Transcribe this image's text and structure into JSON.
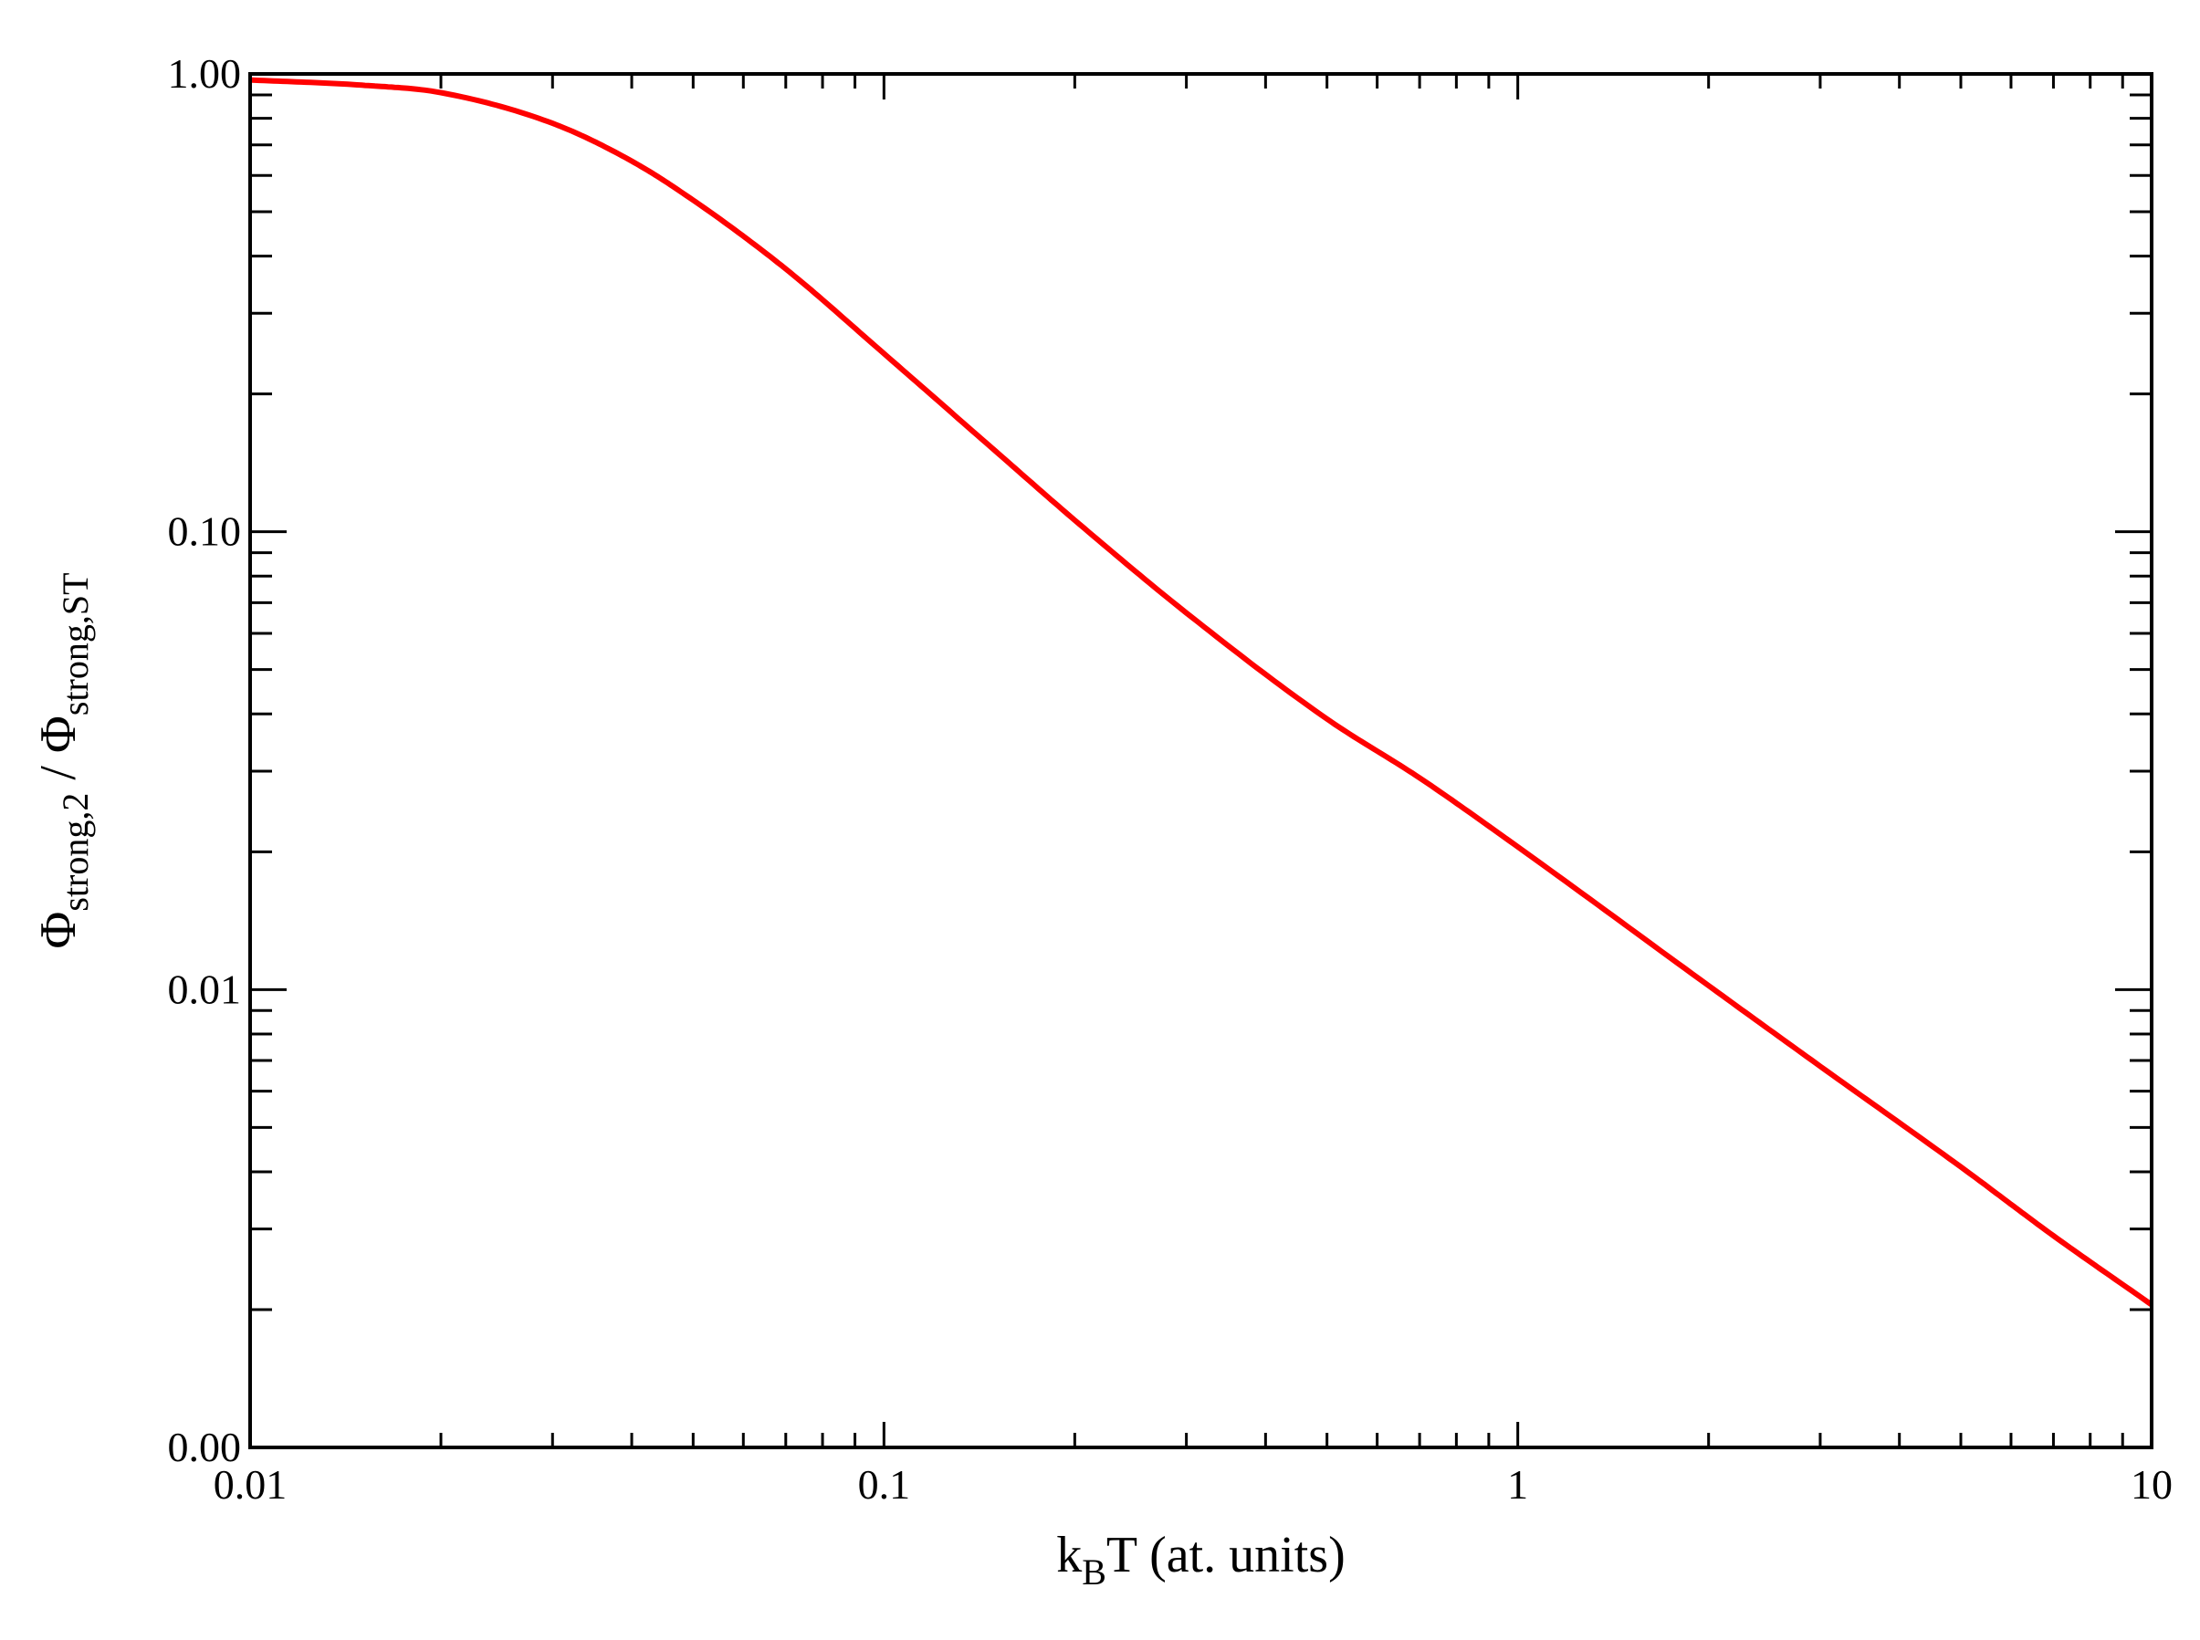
{
  "chart_data": {
    "type": "line",
    "title": "",
    "xlabel": {
      "main_pre": "k",
      "sub": "B",
      "main_post": "T (at. units)"
    },
    "ylabel": {
      "sym1": "Φ",
      "sub1": "strong,2",
      "sep": " / ",
      "sym2": "Φ",
      "sub2": "strong,ST"
    },
    "x_scale": "log",
    "y_scale": "log",
    "xlim": [
      0.01,
      10
    ],
    "ylim": [
      0.001,
      1.0
    ],
    "x_ticks": [
      {
        "value": 0.01,
        "label": "0.01"
      },
      {
        "value": 0.1,
        "label": "0.1"
      },
      {
        "value": 1,
        "label": "1"
      },
      {
        "value": 10,
        "label": "10"
      }
    ],
    "y_ticks": [
      {
        "value": 0.001,
        "label": "0.00"
      },
      {
        "value": 0.01,
        "label": "0.01"
      },
      {
        "value": 0.1,
        "label": "0.10"
      },
      {
        "value": 1.0,
        "label": "1.00"
      }
    ],
    "grid": false,
    "legend": "none",
    "series": [
      {
        "color": "#ff0000",
        "x": [
          0.01,
          0.015,
          0.02,
          0.03,
          0.04,
          0.05,
          0.07,
          0.1,
          0.15,
          0.2,
          0.3,
          0.5,
          0.7,
          1,
          2,
          3,
          5,
          7,
          10
        ],
        "y": [
          0.97,
          0.945,
          0.91,
          0.78,
          0.645,
          0.53,
          0.375,
          0.245,
          0.15,
          0.106,
          0.0665,
          0.039,
          0.029,
          0.0205,
          0.0102,
          0.0068,
          0.0041,
          0.0029,
          0.00205
        ]
      }
    ]
  }
}
